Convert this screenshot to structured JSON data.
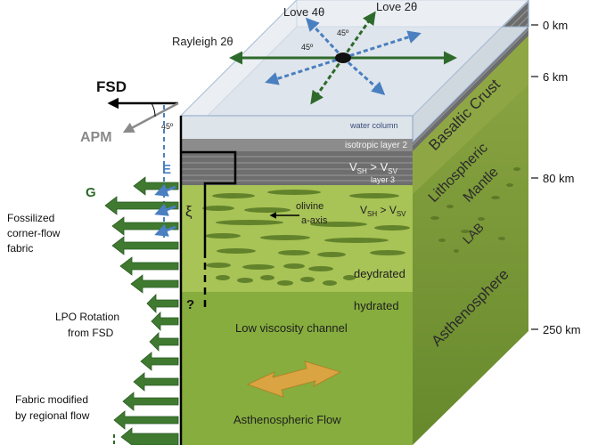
{
  "surface": {
    "love4": "Love 4θ",
    "love2": "Love 2θ",
    "rayleigh": "Rayleigh 2θ",
    "angle_a": "45º",
    "angle_b": "45º"
  },
  "left": {
    "fsd": "FSD",
    "apm": "APM",
    "angle": "45º",
    "e": "E",
    "g": "G",
    "fossil_l1": "Fossilized",
    "fossil_l2": "corner-flow",
    "fossil_l3": "fabric",
    "lpo_l1": "LPO Rotation",
    "lpo_l2": "from FSD",
    "fabric_l1": "Fabric modified",
    "fabric_l2": "by regional flow"
  },
  "front": {
    "water": "water column",
    "iso": "isotropic layer 2",
    "vsh_top": "V",
    "vsh_top_sub": "SH",
    "gt_top": " > V",
    "vsv_top_sub": "SV",
    "layer3": "layer 3",
    "xi": "ξ",
    "olivine": "olivine",
    "axis": "a-axis",
    "vsh_low": "V",
    "vsh_low_sub": "SH",
    "gt_low": " > V",
    "vsv_low_sub": "SV",
    "dehydrated": "deydrated",
    "hydrated": "hydrated",
    "question": "?",
    "lvc": "Low viscosity channel",
    "flow": "Asthenospheric Flow"
  },
  "side": {
    "basaltic": "Basaltic Crust",
    "lithospheric": "Lithospheric",
    "mantle": "Mantle",
    "lab": "LAB",
    "astheno": "Asthenosphere"
  },
  "depths": [
    "0 km",
    "6 km",
    "80 km",
    "250 km"
  ],
  "colors": {
    "water_top": "#cfd7df",
    "water_front": "#dde4ea",
    "litho_green": "#9fb94e",
    "astheno_green": "#7ea43a",
    "side_green": "#6f8f30",
    "arrow_green": "#2e6a2b",
    "arrow_blue": "#4a7fc0",
    "flow_arrow": "#d9a441"
  }
}
